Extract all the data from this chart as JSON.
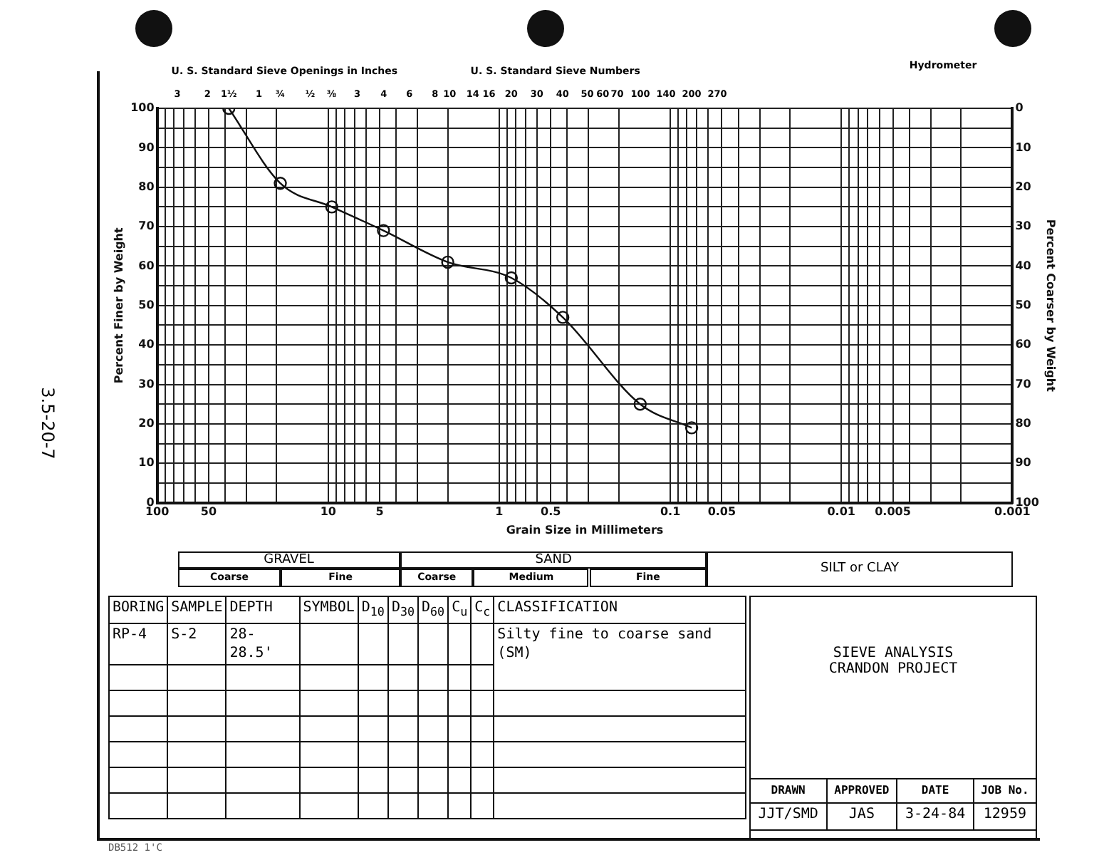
{
  "chart_data": {
    "type": "line",
    "xlabel": "Grain Size in Millimeters",
    "ylabel": "Percent Finer by Weight",
    "y2label": "Percent Coarser by Weight",
    "x2label": "U. S. Standard Sieve Openings in Inches",
    "log": "x",
    "grid": true,
    "legend": false,
    "marker": "circle",
    "line_style": "solid",
    "x": [
      38.1,
      19.05,
      9.525,
      4.75,
      2.0,
      0.85,
      0.425,
      0.15,
      0.075
    ],
    "series": [
      {
        "color": "#111111",
        "values": [
          100,
          81,
          75,
          69,
          61,
          57,
          47,
          25,
          19
        ]
      }
    ],
    "xlim": [
      100,
      0.001
    ],
    "xticks": [
      100,
      {
        "value": 90,
        "label": null
      },
      {
        "value": 80,
        "label": null
      },
      {
        "value": 70,
        "label": null
      },
      {
        "value": 60,
        "label": null
      },
      50,
      {
        "value": 40,
        "label": null
      },
      {
        "value": 30,
        "label": null
      },
      {
        "value": 20,
        "label": null
      },
      10,
      {
        "value": 9,
        "label": null
      },
      {
        "value": 8,
        "label": null
      },
      {
        "value": 7,
        "label": null
      },
      {
        "value": 6,
        "label": null
      },
      5,
      {
        "value": 4,
        "label": null
      },
      {
        "value": 3,
        "label": null
      },
      {
        "value": 2,
        "label": null
      },
      1,
      {
        "value": 0.9,
        "label": null
      },
      {
        "value": 0.8,
        "label": null
      },
      {
        "value": 0.7,
        "label": null
      },
      {
        "value": 0.6,
        "label": null
      },
      0.5,
      {
        "value": 0.4,
        "label": null
      },
      {
        "value": 0.3,
        "label": null
      },
      {
        "value": 0.2,
        "label": null
      },
      0.1,
      {
        "value": 0.09,
        "label": null
      },
      {
        "value": 0.08,
        "label": null
      },
      {
        "value": 0.07,
        "label": null
      },
      {
        "value": 0.06,
        "label": null
      },
      0.05,
      {
        "value": 0.04,
        "label": null
      },
      {
        "value": 0.03,
        "label": null
      },
      {
        "value": 0.02,
        "label": null
      },
      0.01,
      {
        "value": 0.009,
        "label": null
      },
      {
        "value": 0.008,
        "label": null
      },
      {
        "value": 0.007,
        "label": null
      },
      {
        "value": 0.006,
        "label": null
      },
      0.005,
      {
        "value": 0.004,
        "label": null
      },
      {
        "value": 0.003,
        "label": null
      },
      {
        "value": 0.002,
        "label": null
      },
      0.001
    ],
    "ylim": [
      0,
      100
    ],
    "yticks": [
      0,
      {
        "value": 5,
        "label": null
      },
      10,
      {
        "value": 15,
        "label": null
      },
      20,
      {
        "value": 25,
        "label": null
      },
      30,
      {
        "value": 35,
        "label": null
      },
      40,
      {
        "value": 45,
        "label": null
      },
      50,
      {
        "value": 55,
        "label": null
      },
      60,
      {
        "value": 65,
        "label": null
      },
      70,
      {
        "value": 75,
        "label": null
      },
      80,
      {
        "value": 85,
        "label": null
      },
      90,
      {
        "value": 95,
        "label": null
      },
      100
    ],
    "y2lim": [
      100,
      0
    ],
    "y2ticks": [
      0,
      10,
      20,
      30,
      40,
      50,
      60,
      70,
      80,
      90,
      100
    ],
    "annotations": [
      "U. S. Standard Sieve Numbers",
      "Hydrometer",
      "3.5-20-7",
      "BORING",
      "SAMPLE",
      "DEPTH",
      "SYMBOL",
      "D$_{10}$",
      "D$_{30}$",
      "D$_{60}$",
      "C$_{u}$",
      "C$_{c}$",
      "CLASSIFICATION",
      "RP-4",
      "S-2",
      "28-28.5'",
      "Silty fine to coarse sand (SM)",
      "SIEVE ANALYSIS",
      "CRANDON PROJECT",
      "DRAWN",
      "APPROVED",
      "DATE",
      "JOB No.",
      "JJT/SMD",
      "JAS",
      "3-24-84",
      "12959",
      "DB512 1'C",
      "GRAVEL",
      "SAND",
      "SILT or CLAY",
      "Coarse",
      "Fine",
      "Coarse",
      "Medium",
      "Fine",
      "3",
      "2",
      "1½",
      "1",
      "¾",
      "½",
      "⅜",
      "3",
      "4",
      "6",
      "8",
      "10",
      "14",
      "16",
      "20",
      "30",
      "40",
      "50",
      "60",
      "70",
      "100",
      "140",
      "200",
      "270"
    ]
  }
}
